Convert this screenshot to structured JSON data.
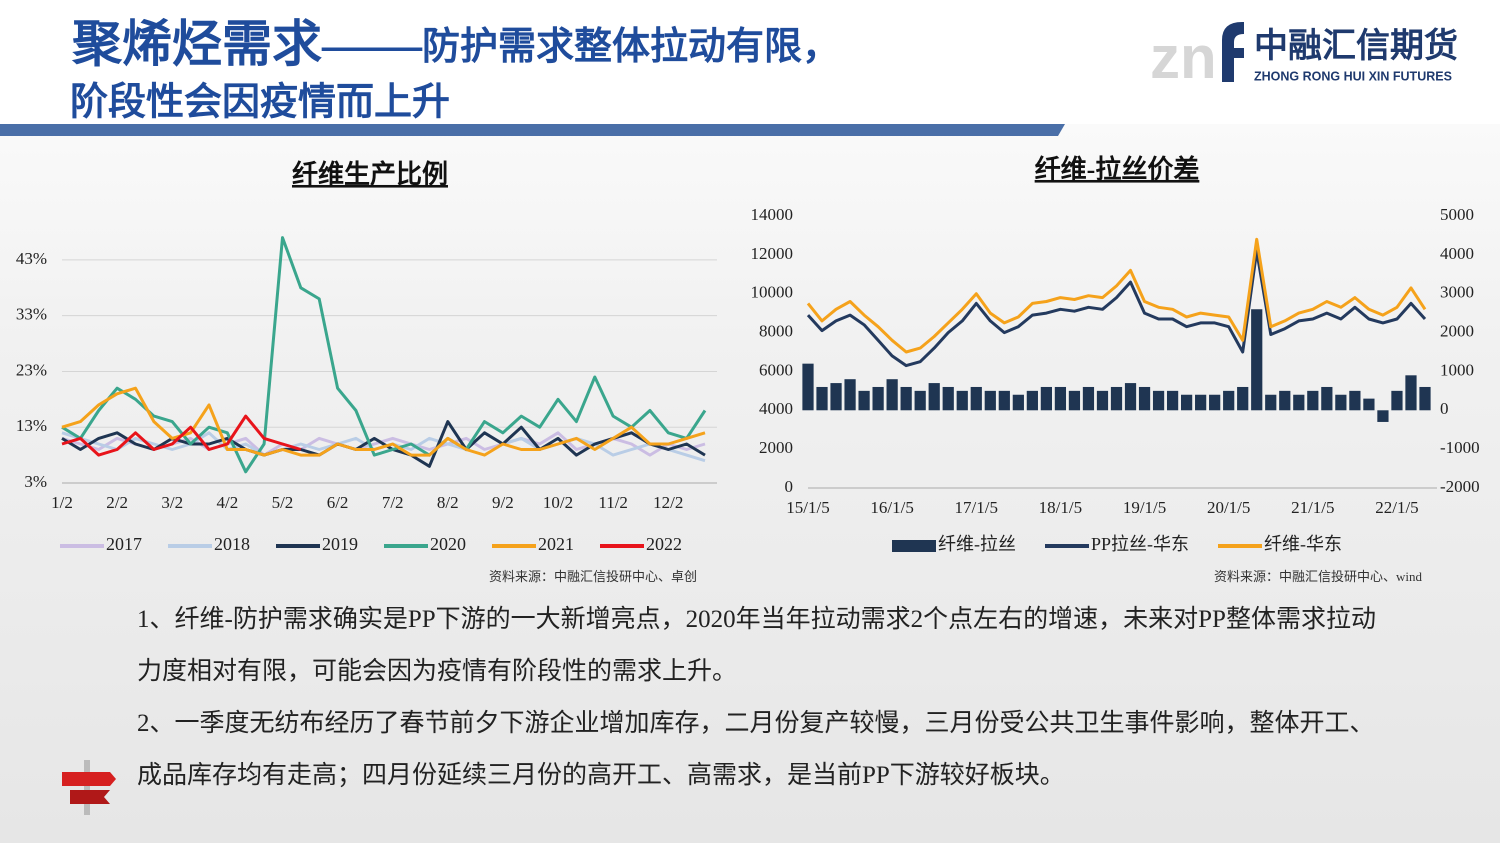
{
  "header": {
    "title_main": "聚烯烃需求——",
    "title_sub": "防护需求整体拉动有限，",
    "title_line2": "阶段性会因疫情而上升"
  },
  "logo": {
    "name": "中融汇信期货",
    "subtitle": "ZHONG RONG HUI XIN FUTURES"
  },
  "chart_data": [
    {
      "type": "line",
      "title": "纤维生产比例",
      "source": "资料来源：中融汇信投研中心、卓创",
      "categories": [
        "1/2",
        null,
        null,
        "2/2",
        null,
        null,
        "3/2",
        null,
        null,
        "4/2",
        null,
        null,
        "5/2",
        null,
        null,
        "6/2",
        null,
        null,
        "7/2",
        null,
        null,
        "8/2",
        null,
        null,
        "9/2",
        null,
        null,
        "10/2",
        null,
        null,
        "11/2",
        null,
        null,
        "12/2",
        null,
        null
      ],
      "ylim": [
        3,
        48
      ],
      "yticks": [
        {
          "value": 3,
          "label": "3%"
        },
        {
          "value": 13,
          "label": "13%"
        },
        {
          "value": 23,
          "label": "23%"
        },
        {
          "value": 33,
          "label": "33%"
        },
        {
          "value": 43,
          "label": "43%"
        }
      ],
      "grid": true,
      "series": [
        {
          "name": "2017",
          "color": "#cbbde3",
          "values": [
            11,
            10,
            9,
            11,
            10,
            9,
            10,
            11,
            9,
            10,
            11,
            8,
            10,
            9,
            11,
            10,
            9,
            10,
            11,
            10,
            9,
            10,
            11,
            9,
            10,
            11,
            10,
            12,
            9,
            10,
            11,
            10,
            8,
            10,
            9,
            10
          ]
        },
        {
          "name": "2018",
          "color": "#b9cde6",
          "values": [
            12,
            11,
            10,
            9,
            11,
            10,
            9,
            10,
            12,
            9,
            10,
            8,
            9,
            10,
            9,
            10,
            11,
            9,
            10,
            9,
            11,
            10,
            9,
            12,
            10,
            11,
            9,
            10,
            11,
            10,
            8,
            9,
            10,
            9,
            8,
            7
          ]
        },
        {
          "name": "2019",
          "color": "#1f3552",
          "values": [
            11,
            9,
            11,
            12,
            10,
            9,
            11,
            10,
            10,
            11,
            9,
            8,
            9,
            9,
            8,
            10,
            9,
            11,
            9,
            8,
            6,
            14,
            9,
            12,
            10,
            13,
            9,
            11,
            8,
            10,
            11,
            12,
            10,
            9,
            10,
            8
          ]
        },
        {
          "name": "2020",
          "color": "#3aa68d",
          "values": [
            13,
            11,
            16,
            20,
            18,
            15,
            14,
            10,
            13,
            12,
            5,
            10,
            47,
            38,
            36,
            20,
            16,
            8,
            9,
            10,
            8,
            11,
            9,
            14,
            12,
            15,
            13,
            18,
            14,
            22,
            15,
            13,
            16,
            12,
            11,
            16
          ]
        },
        {
          "name": "2021",
          "color": "#f5a21b",
          "values": [
            13,
            14,
            17,
            19,
            20,
            14,
            11,
            12,
            17,
            9,
            9,
            8,
            9,
            8,
            8,
            10,
            9,
            9,
            10,
            8,
            8,
            11,
            9,
            8,
            10,
            9,
            9,
            10,
            11,
            9,
            11,
            13,
            10,
            10,
            11,
            12
          ]
        },
        {
          "name": "2022",
          "color": "#e8141b",
          "values": [
            10,
            11,
            8,
            9,
            12,
            9,
            10,
            13,
            9,
            10,
            15,
            11,
            10,
            9,
            null,
            null,
            null,
            null,
            null,
            null,
            null,
            null,
            null,
            null,
            null,
            null,
            null,
            null,
            null,
            null,
            null,
            null,
            null,
            null,
            null,
            null
          ]
        }
      ]
    },
    {
      "type": "combo",
      "title": "纤维-拉丝价差",
      "source": "资料来源：中融汇信投研中心、wind",
      "categories": [
        "15/1/5",
        null,
        null,
        null,
        null,
        null,
        "16/1/5",
        null,
        null,
        null,
        null,
        null,
        "17/1/5",
        null,
        null,
        null,
        null,
        null,
        "18/1/5",
        null,
        null,
        null,
        null,
        null,
        "19/1/5",
        null,
        null,
        null,
        null,
        null,
        "20/1/5",
        null,
        null,
        null,
        null,
        null,
        "21/1/5",
        null,
        null,
        null,
        null,
        null,
        "22/1/5",
        null,
        null
      ],
      "ylim": [
        0,
        14000
      ],
      "yticks": [
        0,
        2000,
        4000,
        6000,
        8000,
        10000,
        12000,
        14000
      ],
      "y2lim": [
        -2000,
        5000
      ],
      "y2ticks": [
        -2000,
        -1000,
        0,
        1000,
        2000,
        3000,
        4000,
        5000
      ],
      "grid": false,
      "series": [
        {
          "name": "纤维-拉丝",
          "color": "#1f3552",
          "type": "bar",
          "axis": "y2",
          "values": [
            1200,
            600,
            700,
            800,
            500,
            600,
            800,
            600,
            500,
            700,
            600,
            500,
            600,
            500,
            500,
            400,
            500,
            600,
            600,
            500,
            600,
            500,
            600,
            700,
            600,
            500,
            500,
            400,
            400,
            400,
            500,
            600,
            2600,
            400,
            500,
            400,
            500,
            600,
            400,
            500,
            300,
            -300,
            500,
            900,
            600
          ]
        },
        {
          "name": "PP拉丝-华东",
          "color": "#243a5e",
          "type": "line",
          "values": [
            8900,
            8100,
            8600,
            8900,
            8400,
            7600,
            6800,
            6300,
            6500,
            7200,
            8000,
            8600,
            9500,
            8600,
            8000,
            8300,
            8900,
            9000,
            9200,
            9100,
            9300,
            9200,
            9800,
            10600,
            9000,
            8700,
            8700,
            8300,
            8500,
            8500,
            8300,
            7000,
            12200,
            7900,
            8200,
            8600,
            8700,
            9000,
            8700,
            9300,
            8700,
            8500,
            8700,
            9500,
            8700
          ]
        },
        {
          "name": "纤维-华东",
          "color": "#f5a21b",
          "type": "line",
          "values": [
            9500,
            8600,
            9200,
            9600,
            8900,
            8300,
            7600,
            7000,
            7200,
            7800,
            8500,
            9200,
            10000,
            9000,
            8500,
            8800,
            9500,
            9600,
            9800,
            9700,
            9900,
            9800,
            10400,
            11200,
            9600,
            9300,
            9200,
            8800,
            9000,
            8900,
            8800,
            7600,
            12800,
            8300,
            8600,
            9000,
            9200,
            9600,
            9300,
            9800,
            9200,
            8900,
            9300,
            10300,
            9200
          ]
        }
      ]
    }
  ],
  "body": {
    "paragraphs": [
      "1、纤维-防护需求确实是PP下游的一大新增亮点，2020年当年拉动需求2个点左右的增速，未来对PP整体需求拉动力度相对有限，可能会因为疫情有阶段性的需求上升。",
      "2、一季度无纺布经历了春节前夕下游企业增加库存，二月份复产较慢，三月份受公共卫生事件影响，整体开工、成品库存均有走高；四月份延续三月份的高开工、高需求，是当前PP下游较好板块。"
    ]
  }
}
